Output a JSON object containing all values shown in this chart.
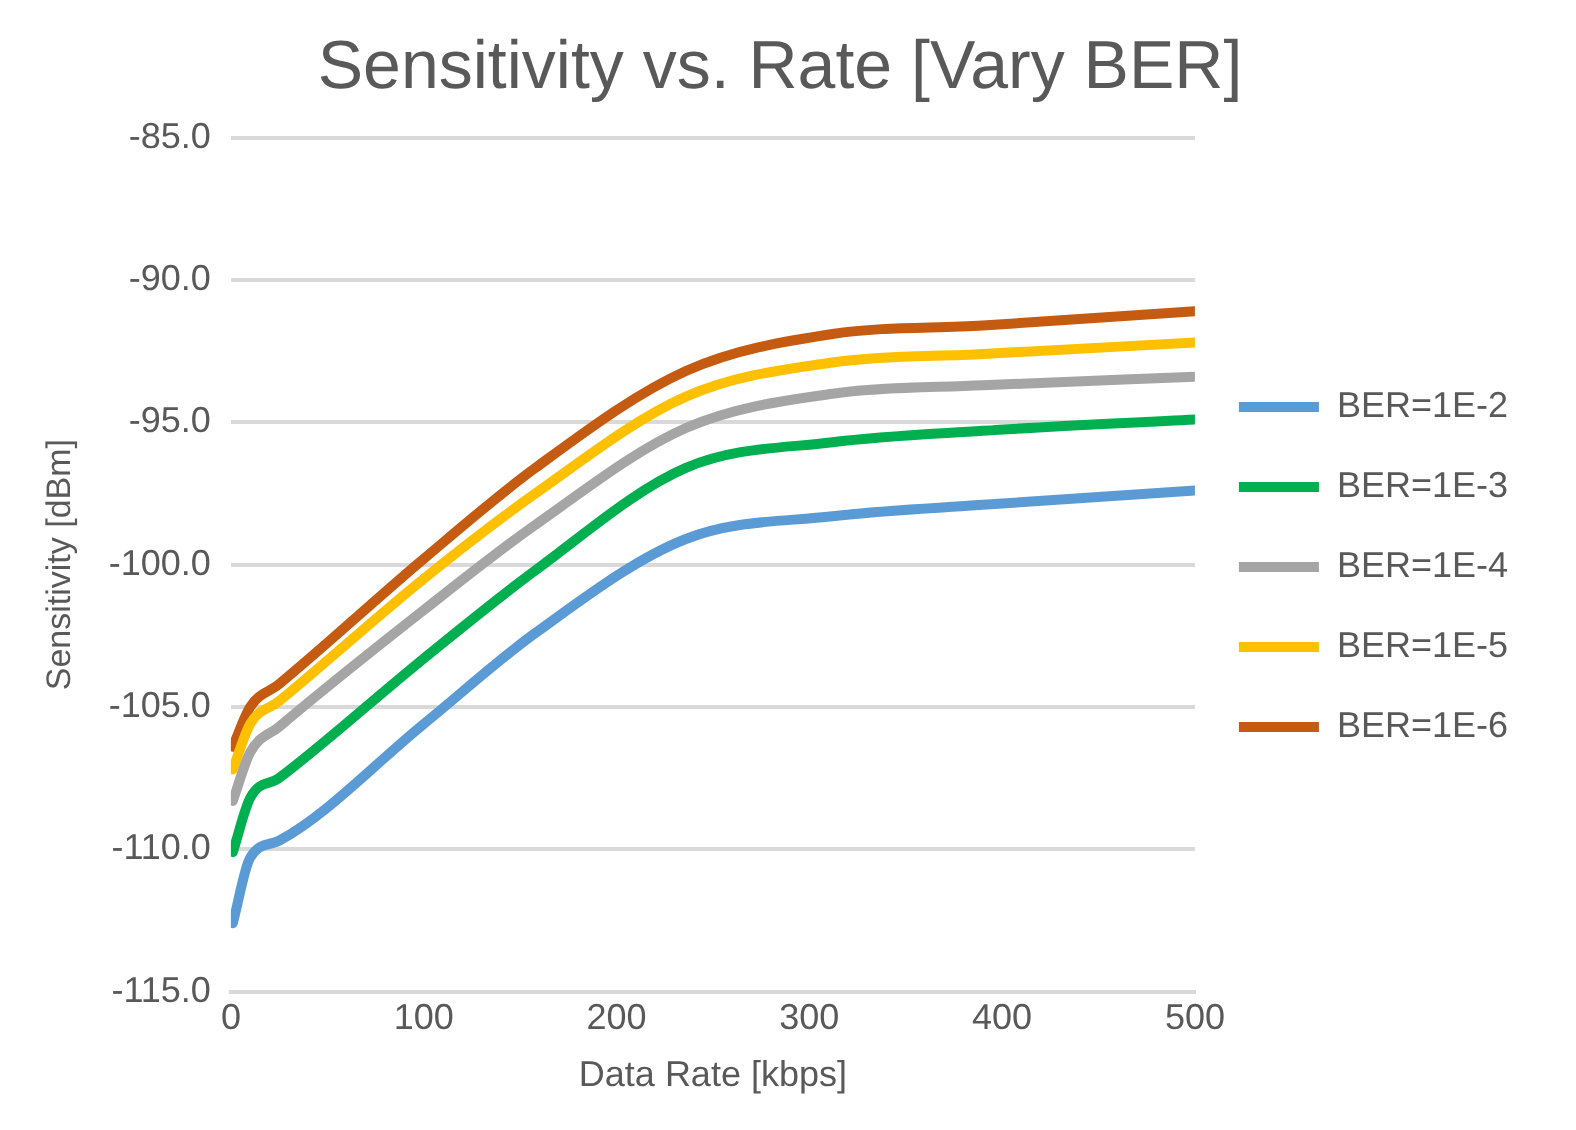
{
  "chart_data": {
    "type": "line",
    "title": "Sensitivity vs. Rate [Vary BER]",
    "xlabel": "Data Rate [kbps]",
    "ylabel": "Sensitivity [dBm]",
    "x": [
      1,
      10,
      25,
      100,
      158,
      236,
      312,
      390,
      500
    ],
    "series": [
      {
        "name": "BER=1E-2",
        "color": "#5b9bd5",
        "values": [
          -112.6,
          -110.3,
          -109.7,
          -105.6,
          -102.4,
          -99.1,
          -98.3,
          -97.9,
          -97.4
        ]
      },
      {
        "name": "BER=1E-3",
        "color": "#00b050",
        "values": [
          -110.1,
          -108.2,
          -107.5,
          -103.3,
          -100.2,
          -96.6,
          -95.7,
          -95.3,
          -94.9
        ]
      },
      {
        "name": "BER=1E-4",
        "color": "#a5a5a5",
        "values": [
          -108.3,
          -106.6,
          -105.7,
          -101.6,
          -98.6,
          -95.2,
          -94.0,
          -93.7,
          -93.4
        ]
      },
      {
        "name": "BER=1E-5",
        "color": "#ffc000",
        "values": [
          -107.2,
          -105.6,
          -104.8,
          -100.5,
          -97.5,
          -94.1,
          -92.9,
          -92.6,
          -92.2
        ]
      },
      {
        "name": "BER=1E-6",
        "color": "#c55a11",
        "values": [
          -106.4,
          -105.0,
          -104.2,
          -99.8,
          -96.6,
          -93.2,
          -91.9,
          -91.6,
          -91.1
        ]
      }
    ],
    "xlim": [
      0,
      500
    ],
    "xticks": [
      0,
      100,
      200,
      300,
      400,
      500
    ],
    "ylim": [
      -115,
      -85
    ],
    "yticks": [
      {
        "value": -115,
        "label": "-115.0"
      },
      {
        "value": -110,
        "label": "-110.0"
      },
      {
        "value": -105,
        "label": "-105.0"
      },
      {
        "value": -100,
        "label": "-100.0"
      },
      {
        "value": -95,
        "label": "-95.0"
      },
      {
        "value": -90,
        "label": "-90.0"
      },
      {
        "value": -85,
        "label": "-85.0"
      }
    ],
    "grid": "y",
    "legend": "right",
    "marker": "none",
    "line_style": "solid"
  }
}
